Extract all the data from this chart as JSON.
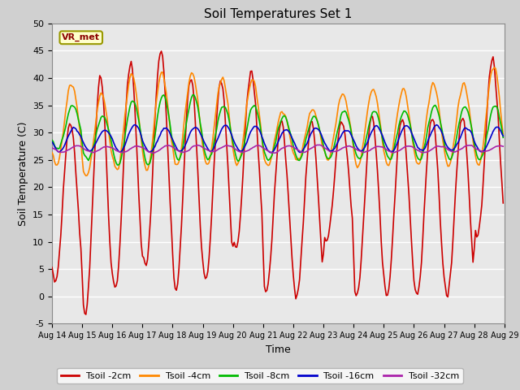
{
  "title": "Soil Temperatures Set 1",
  "xlabel": "Time",
  "ylabel": "Soil Temperature (C)",
  "ylim": [
    -5,
    50
  ],
  "annotation_text": "VR_met",
  "annotation_fg": "#8b0000",
  "annotation_bg": "#ffffcc",
  "annotation_border": "#999900",
  "series": [
    {
      "label": "Tsoil -2cm",
      "color": "#cc0000",
      "lw": 1.2
    },
    {
      "label": "Tsoil -4cm",
      "color": "#ff8800",
      "lw": 1.2
    },
    {
      "label": "Tsoil -8cm",
      "color": "#00bb00",
      "lw": 1.2
    },
    {
      "label": "Tsoil -16cm",
      "color": "#0000cc",
      "lw": 1.2
    },
    {
      "label": "Tsoil -32cm",
      "color": "#aa22aa",
      "lw": 1.2
    }
  ],
  "tick_dates": [
    "Aug 14",
    "Aug 15",
    "Aug 16",
    "Aug 17",
    "Aug 18",
    "Aug 19",
    "Aug 20",
    "Aug 21",
    "Aug 22",
    "Aug 23",
    "Aug 24",
    "Aug 25",
    "Aug 26",
    "Aug 27",
    "Aug 28",
    "Aug 29"
  ],
  "yticks": [
    -5,
    0,
    5,
    10,
    15,
    20,
    25,
    30,
    35,
    40,
    45,
    50
  ],
  "fig_bg": "#d0d0d0",
  "ax_bg": "#e8e8e8",
  "grid_color": "#ffffff"
}
